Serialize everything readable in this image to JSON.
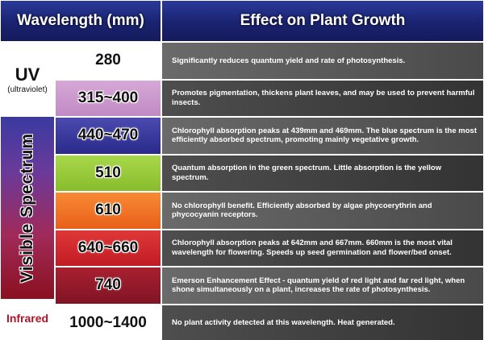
{
  "header": {
    "wavelength": "Wavelength (mm)",
    "effect": "Effect on Plant Growth"
  },
  "groups": [
    {
      "label": "UV",
      "sublabel": "(ultraviolet)"
    },
    {
      "label": "Visible Spectrum"
    },
    {
      "label": "Infrared"
    }
  ],
  "rows": [
    {
      "wavelength": "280",
      "effect": "Significantly reduces quantum yield and rate of photosynthesis."
    },
    {
      "wavelength": "315~400",
      "effect": "Promotes pigmentation, thickens plant leaves, and may be used to prevent harmful insects."
    },
    {
      "wavelength": "440~470",
      "effect": "Chlorophyll absorption peaks at 439mm and 469mm. The blue spectrum is the most efficiently absorbed spectrum, promoting mainly vegetative growth."
    },
    {
      "wavelength": "510",
      "effect": "Quantum absorption in the green spectrum. Little absorption is the yellow spectrum."
    },
    {
      "wavelength": "610",
      "effect": "No chlorophyll benefit. Efficiently absorbed by algae phycoerythrin and phycocyanin receptors."
    },
    {
      "wavelength": "640~660",
      "effect": "Chlorophyll absorption peaks at 642mm and 667mm. 660mm is the most vital wavelength for flowering. Speeds up seed germination and flower/bed onset."
    },
    {
      "wavelength": "740",
      "effect": "Emerson Enhancement Effect - quantum yield of red light and far red light, when shone simultaneously on a plant, increases the rate of photosynthesis."
    },
    {
      "wavelength": "1000~1400",
      "effect": "No plant activity detected at this wavelength. Heat generated."
    }
  ]
}
